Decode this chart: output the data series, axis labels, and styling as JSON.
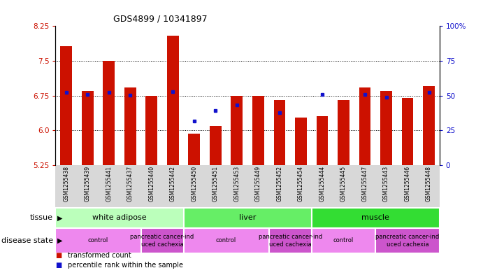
{
  "title": "GDS4899 / 10341897",
  "samples": [
    "GSM1255438",
    "GSM1255439",
    "GSM1255441",
    "GSM1255437",
    "GSM1255440",
    "GSM1255442",
    "GSM1255450",
    "GSM1255451",
    "GSM1255453",
    "GSM1255449",
    "GSM1255452",
    "GSM1255454",
    "GSM1255444",
    "GSM1255445",
    "GSM1255447",
    "GSM1255443",
    "GSM1255446",
    "GSM1255448"
  ],
  "red_values": [
    7.82,
    6.85,
    7.5,
    6.93,
    6.75,
    8.05,
    5.93,
    6.1,
    6.75,
    6.75,
    6.65,
    6.28,
    6.3,
    6.65,
    6.93,
    6.85,
    6.7,
    6.95
  ],
  "blue_values": [
    6.82,
    6.78,
    6.82,
    6.76,
    null,
    6.84,
    6.2,
    6.42,
    6.55,
    null,
    6.38,
    null,
    6.78,
    null,
    6.77,
    6.72,
    null,
    6.82
  ],
  "bar_base": 5.25,
  "ylim_left": [
    5.25,
    8.25
  ],
  "ylim_right": [
    0,
    100
  ],
  "yticks_left": [
    5.25,
    6.0,
    6.75,
    7.5,
    8.25
  ],
  "yticks_right": [
    0,
    25,
    50,
    75,
    100
  ],
  "bar_color": "#cc1100",
  "dot_color": "#1111cc",
  "tick_color_left": "#cc1100",
  "tick_color_right": "#1111cc",
  "tissue_groups": [
    {
      "label": "white adipose",
      "start": 0,
      "end": 6,
      "color": "#bbffbb"
    },
    {
      "label": "liver",
      "start": 6,
      "end": 12,
      "color": "#66ee66"
    },
    {
      "label": "muscle",
      "start": 12,
      "end": 18,
      "color": "#33dd33"
    }
  ],
  "disease_groups": [
    {
      "label": "control",
      "start": 0,
      "end": 4,
      "color": "#ee88ee"
    },
    {
      "label": "pancreatic cancer-ind\nuced cachexia",
      "start": 4,
      "end": 6,
      "color": "#cc55cc"
    },
    {
      "label": "control",
      "start": 6,
      "end": 10,
      "color": "#ee88ee"
    },
    {
      "label": "pancreatic cancer-ind\nuced cachexia",
      "start": 10,
      "end": 12,
      "color": "#cc55cc"
    },
    {
      "label": "control",
      "start": 12,
      "end": 15,
      "color": "#ee88ee"
    },
    {
      "label": "pancreatic cancer-ind\nuced cachexia",
      "start": 15,
      "end": 18,
      "color": "#cc55cc"
    }
  ],
  "legend_items": [
    {
      "label": "transformed count",
      "color": "#cc1100"
    },
    {
      "label": "percentile rank within the sample",
      "color": "#1111cc"
    }
  ],
  "xticklabel_bg": "#dddddd",
  "tissue_label": "tissue",
  "disease_label": "disease state"
}
